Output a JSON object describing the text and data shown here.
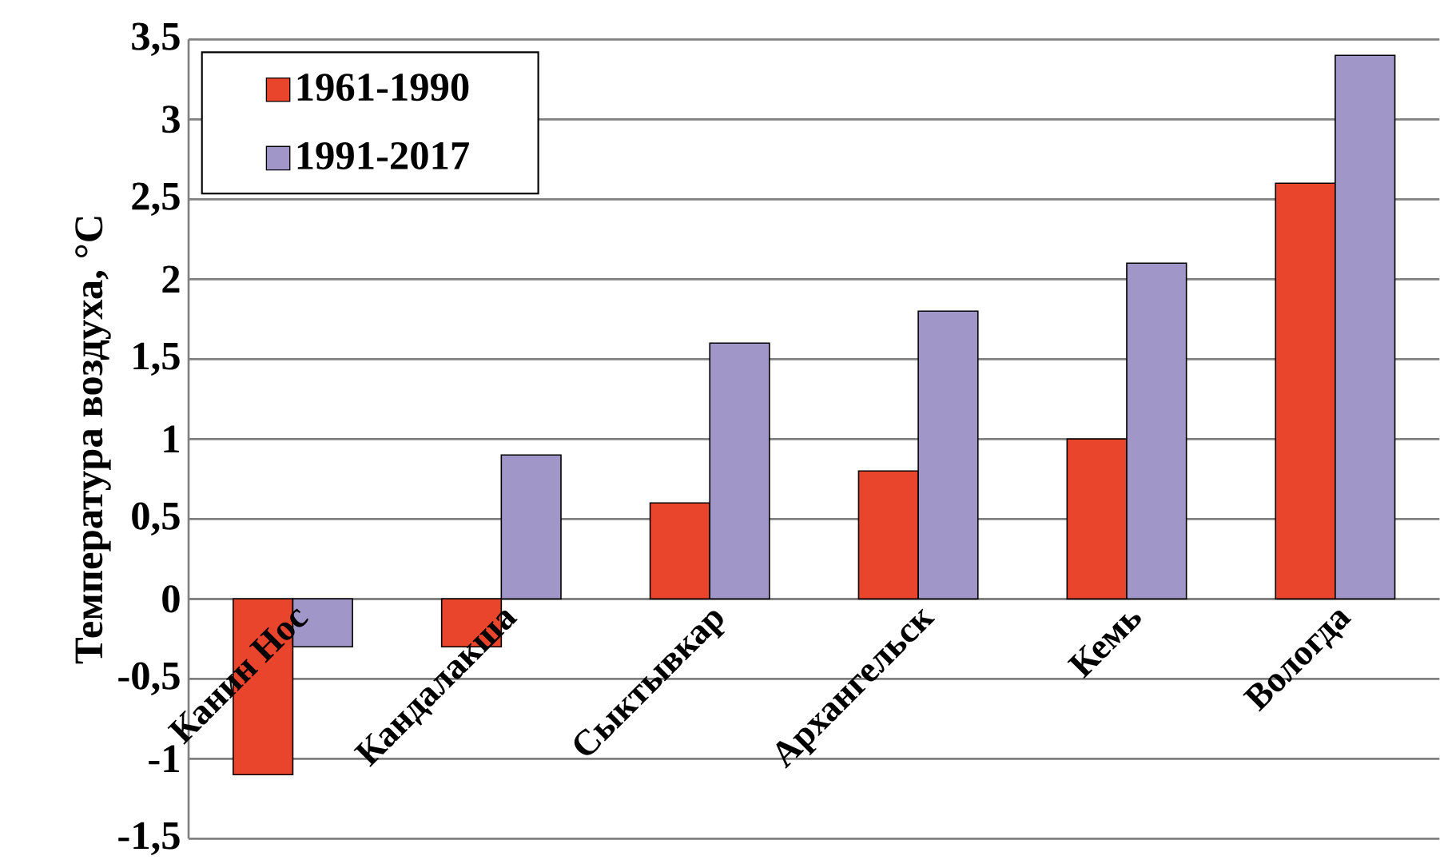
{
  "chart_data": {
    "type": "bar",
    "ylabel": "Температура воздуха, °С",
    "categories": [
      "Канин Нос",
      "Кандалакша",
      "Сыктывкар",
      "Архангельск",
      "Кемь",
      "Вологда"
    ],
    "series": [
      {
        "name": "1961-1990",
        "color": "#e8452c",
        "values": [
          -1.1,
          -0.3,
          0.6,
          0.8,
          1.0,
          2.6
        ]
      },
      {
        "name": "1991-2017",
        "color": "#a097c8",
        "values": [
          -0.3,
          0.9,
          1.6,
          1.8,
          2.1,
          3.4
        ]
      }
    ],
    "ylim": [
      -1.5,
      3.5
    ],
    "yticks": [
      {
        "value": -1.5,
        "label": "-1,5"
      },
      -1,
      {
        "value": -0.5,
        "label": "-0,5"
      },
      0,
      {
        "value": 0.5,
        "label": "0,5"
      },
      1,
      {
        "value": 1.5,
        "label": "1,5"
      },
      2,
      {
        "value": 2.5,
        "label": "2,5"
      },
      3,
      {
        "value": 3.5,
        "label": "3,5"
      }
    ],
    "grid": "y",
    "legend": "top left"
  }
}
